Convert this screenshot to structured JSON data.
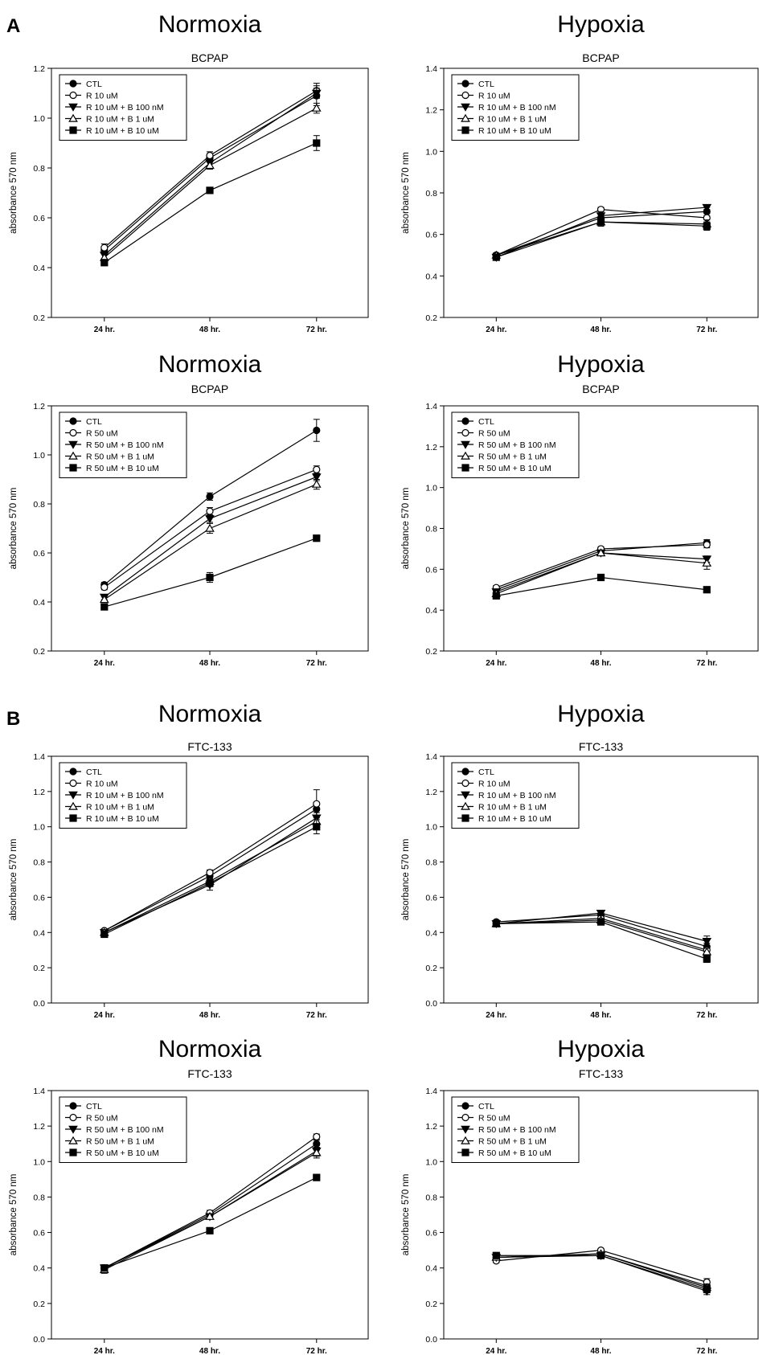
{
  "figure": {
    "section_labels": [
      "A",
      "B"
    ]
  },
  "styles": {
    "CTL": "filled-circle",
    "R10": "open-circle",
    "R50": "open-circle",
    "RB100": "filled-triangle-down",
    "RB1": "open-triangle-up",
    "RB10": "filled-square"
  },
  "chart_data": [
    {
      "type": "line",
      "heading": "Normoxia",
      "title": "BCPAP",
      "ylabel": "absorbance 570 nm",
      "x": [
        "24 hr.",
        "48 hr.",
        "72 hr."
      ],
      "ylim": [
        0.2,
        1.2
      ],
      "yticks": [
        0.2,
        0.4,
        0.6,
        0.8,
        1.0,
        1.2
      ],
      "legend_position": "top-left",
      "series": [
        {
          "name": "CTL",
          "style": "CTL",
          "values": [
            0.47,
            0.84,
            1.09
          ],
          "err": [
            0.015,
            0.015,
            0.04
          ]
        },
        {
          "name": "R 10 uM",
          "style": "R10",
          "values": [
            0.48,
            0.85,
            1.11
          ],
          "err": [
            0.015,
            0.015,
            0.03
          ]
        },
        {
          "name": "R 10 uM + B 100 nM",
          "style": "RB100",
          "values": [
            0.45,
            0.82,
            1.1
          ],
          "err": [
            0.015,
            0.015,
            0.02
          ]
        },
        {
          "name": "R 10 uM + B 1 uM",
          "style": "RB1",
          "values": [
            0.44,
            0.81,
            1.04
          ],
          "err": [
            0.015,
            0.015,
            0.02
          ]
        },
        {
          "name": "R 10 uM + B 10 uM",
          "style": "RB10",
          "values": [
            0.42,
            0.71,
            0.9
          ],
          "err": [
            0.01,
            0.01,
            0.03
          ]
        }
      ]
    },
    {
      "type": "line",
      "heading": "Hypoxia",
      "title": "BCPAP",
      "ylabel": "absorbance 570 nm",
      "x": [
        "24 hr.",
        "48 hr.",
        "72 hr."
      ],
      "ylim": [
        0.2,
        1.4
      ],
      "yticks": [
        0.2,
        0.4,
        0.6,
        0.8,
        1.0,
        1.2,
        1.4
      ],
      "legend_position": "top-left",
      "series": [
        {
          "name": "CTL",
          "style": "CTL",
          "values": [
            0.5,
            0.68,
            0.71
          ],
          "err": [
            0.01,
            0.02,
            0.02
          ]
        },
        {
          "name": "R 10 uM",
          "style": "R10",
          "values": [
            0.5,
            0.72,
            0.68
          ],
          "err": [
            0.01,
            0.01,
            0.02
          ]
        },
        {
          "name": "R 10 uM + B 100 nM",
          "style": "RB100",
          "values": [
            0.49,
            0.69,
            0.73
          ],
          "err": [
            0.01,
            0.02,
            0.01
          ]
        },
        {
          "name": "R 10 uM + B 1 uM",
          "style": "RB1",
          "values": [
            0.5,
            0.66,
            0.65
          ],
          "err": [
            0.01,
            0.02,
            0.02
          ]
        },
        {
          "name": "R 10 uM + B 10 uM",
          "style": "RB10",
          "values": [
            0.49,
            0.66,
            0.64
          ],
          "err": [
            0.01,
            0.02,
            0.02
          ]
        }
      ]
    },
    {
      "type": "line",
      "heading": "Normoxia",
      "title": "BCPAP",
      "ylabel": "absorbance 570 nm",
      "x": [
        "24 hr.",
        "48 hr.",
        "72 hr."
      ],
      "ylim": [
        0.2,
        1.2
      ],
      "yticks": [
        0.2,
        0.4,
        0.6,
        0.8,
        1.0,
        1.2
      ],
      "legend_position": "top-left",
      "series": [
        {
          "name": "CTL",
          "style": "CTL",
          "values": [
            0.47,
            0.83,
            1.1
          ],
          "err": [
            0.01,
            0.015,
            0.045
          ]
        },
        {
          "name": "R 50 uM",
          "style": "R50",
          "values": [
            0.46,
            0.77,
            0.94
          ],
          "err": [
            0.01,
            0.015,
            0.015
          ]
        },
        {
          "name": "R 50 uM + B 100 nM",
          "style": "RB100",
          "values": [
            0.42,
            0.74,
            0.91
          ],
          "err": [
            0.01,
            0.015,
            0.015
          ]
        },
        {
          "name": "R 50 uM + B 1 uM",
          "style": "RB1",
          "values": [
            0.41,
            0.7,
            0.88
          ],
          "err": [
            0.01,
            0.02,
            0.02
          ]
        },
        {
          "name": "R 50 uM + B 10 uM",
          "style": "RB10",
          "values": [
            0.38,
            0.5,
            0.66
          ],
          "err": [
            0.01,
            0.02,
            0.01
          ]
        }
      ]
    },
    {
      "type": "line",
      "heading": "Hypoxia",
      "title": "BCPAP",
      "ylabel": "absorbance 570 nm",
      "x": [
        "24 hr.",
        "48 hr.",
        "72 hr."
      ],
      "ylim": [
        0.2,
        1.4
      ],
      "yticks": [
        0.2,
        0.4,
        0.6,
        0.8,
        1.0,
        1.2,
        1.4
      ],
      "legend_position": "top-left",
      "series": [
        {
          "name": "CTL",
          "style": "CTL",
          "values": [
            0.5,
            0.69,
            0.73
          ],
          "err": [
            0.01,
            0.01,
            0.015
          ]
        },
        {
          "name": "R 50 uM",
          "style": "R50",
          "values": [
            0.51,
            0.7,
            0.72
          ],
          "err": [
            0.01,
            0.01,
            0.015
          ]
        },
        {
          "name": "R 50 uM + B 100 nM",
          "style": "RB100",
          "values": [
            0.49,
            0.68,
            0.65
          ],
          "err": [
            0.01,
            0.01,
            0.015
          ]
        },
        {
          "name": "R 50 uM + B 1 uM",
          "style": "RB1",
          "values": [
            0.48,
            0.68,
            0.63
          ],
          "err": [
            0.01,
            0.01,
            0.03
          ]
        },
        {
          "name": "R 50 uM + B 10 uM",
          "style": "RB10",
          "values": [
            0.47,
            0.56,
            0.5
          ],
          "err": [
            0.01,
            0.015,
            0.01
          ]
        }
      ]
    },
    {
      "type": "line",
      "heading": "Normoxia",
      "title": "FTC-133",
      "ylabel": "absorbance 570 nm",
      "x": [
        "24 hr.",
        "48 hr.",
        "72 hr."
      ],
      "ylim": [
        0.0,
        1.4
      ],
      "yticks": [
        0.0,
        0.2,
        0.4,
        0.6,
        0.8,
        1.0,
        1.2,
        1.4
      ],
      "legend_position": "top-left",
      "series": [
        {
          "name": "CTL",
          "style": "CTL",
          "values": [
            0.41,
            0.72,
            1.1
          ],
          "err": [
            0.01,
            0.015,
            0.04
          ]
        },
        {
          "name": "R 10 uM",
          "style": "R10",
          "values": [
            0.41,
            0.74,
            1.13
          ],
          "err": [
            0.01,
            0.015,
            0.08
          ]
        },
        {
          "name": "R 10 uM + B 100 nM",
          "style": "RB100",
          "values": [
            0.4,
            0.67,
            1.05
          ],
          "err": [
            0.01,
            0.03,
            0.03
          ]
        },
        {
          "name": "R 10 uM + B 1 uM",
          "style": "RB1",
          "values": [
            0.4,
            0.69,
            1.03
          ],
          "err": [
            0.01,
            0.02,
            0.03
          ]
        },
        {
          "name": "R 10 uM + B 10 uM",
          "style": "RB10",
          "values": [
            0.39,
            0.68,
            1.0
          ],
          "err": [
            0.01,
            0.02,
            0.04
          ]
        }
      ]
    },
    {
      "type": "line",
      "heading": "Hypoxia",
      "title": "FTC-133",
      "ylabel": "absorbance 570 nm",
      "x": [
        "24 hr.",
        "48 hr.",
        "72 hr."
      ],
      "ylim": [
        0.0,
        1.4
      ],
      "yticks": [
        0.0,
        0.2,
        0.4,
        0.6,
        0.8,
        1.0,
        1.2,
        1.4
      ],
      "legend_position": "top-left",
      "series": [
        {
          "name": "CTL",
          "style": "CTL",
          "values": [
            0.46,
            0.5,
            0.32
          ],
          "err": [
            0.01,
            0.01,
            0.02
          ]
        },
        {
          "name": "R 10 uM",
          "style": "R10",
          "values": [
            0.45,
            0.48,
            0.3
          ],
          "err": [
            0.01,
            0.01,
            0.02
          ]
        },
        {
          "name": "R 10 uM + B 100 nM",
          "style": "RB100",
          "values": [
            0.45,
            0.51,
            0.35
          ],
          "err": [
            0.01,
            0.01,
            0.03
          ]
        },
        {
          "name": "R 10 uM + B 1 uM",
          "style": "RB1",
          "values": [
            0.45,
            0.47,
            0.29
          ],
          "err": [
            0.01,
            0.01,
            0.02
          ]
        },
        {
          "name": "R 10 uM + B 10 uM",
          "style": "RB10",
          "values": [
            0.45,
            0.46,
            0.25
          ],
          "err": [
            0.01,
            0.01,
            0.02
          ]
        }
      ]
    },
    {
      "type": "line",
      "heading": "Normoxia",
      "title": "FTC-133",
      "ylabel": "absorbance 570 nm",
      "x": [
        "24 hr.",
        "48 hr.",
        "72 hr."
      ],
      "ylim": [
        0.0,
        1.4
      ],
      "yticks": [
        0.0,
        0.2,
        0.4,
        0.6,
        0.8,
        1.0,
        1.2,
        1.4
      ],
      "legend_position": "top-left",
      "series": [
        {
          "name": "CTL",
          "style": "CTL",
          "values": [
            0.4,
            0.7,
            1.1
          ],
          "err": [
            0.01,
            0.015,
            0.02
          ]
        },
        {
          "name": "R 50 uM",
          "style": "R50",
          "values": [
            0.4,
            0.71,
            1.14
          ],
          "err": [
            0.01,
            0.015,
            0.015
          ]
        },
        {
          "name": "R 50 uM + B 100 nM",
          "style": "RB100",
          "values": [
            0.4,
            0.69,
            1.06
          ],
          "err": [
            0.01,
            0.015,
            0.03
          ]
        },
        {
          "name": "R 50 uM + B 1 uM",
          "style": "RB1",
          "values": [
            0.39,
            0.69,
            1.05
          ],
          "err": [
            0.02,
            0.015,
            0.03
          ]
        },
        {
          "name": "R 50 uM + B 10 uM",
          "style": "RB10",
          "values": [
            0.4,
            0.61,
            0.91
          ],
          "err": [
            0.01,
            0.01,
            0.015
          ]
        }
      ]
    },
    {
      "type": "line",
      "heading": "Hypoxia",
      "title": "FTC-133",
      "ylabel": "absorbance 570 nm",
      "x": [
        "24 hr.",
        "48 hr.",
        "72 hr."
      ],
      "ylim": [
        0.0,
        1.4
      ],
      "yticks": [
        0.0,
        0.2,
        0.4,
        0.6,
        0.8,
        1.0,
        1.2,
        1.4
      ],
      "legend_position": "top-left",
      "series": [
        {
          "name": "CTL",
          "style": "CTL",
          "values": [
            0.46,
            0.48,
            0.3
          ],
          "err": [
            0.01,
            0.01,
            0.02
          ]
        },
        {
          "name": "R 50 uM",
          "style": "R50",
          "values": [
            0.44,
            0.5,
            0.32
          ],
          "err": [
            0.01,
            0.01,
            0.02
          ]
        },
        {
          "name": "R 50 uM + B 100 nM",
          "style": "RB100",
          "values": [
            0.46,
            0.47,
            0.27
          ],
          "err": [
            0.01,
            0.01,
            0.02
          ]
        },
        {
          "name": "R 50 uM + B 1 uM",
          "style": "RB1",
          "values": [
            0.46,
            0.48,
            0.29
          ],
          "err": [
            0.01,
            0.01,
            0.02
          ]
        },
        {
          "name": "R 50 uM + B 10 uM",
          "style": "RB10",
          "values": [
            0.47,
            0.47,
            0.28
          ],
          "err": [
            0.01,
            0.01,
            0.02
          ]
        }
      ]
    }
  ]
}
